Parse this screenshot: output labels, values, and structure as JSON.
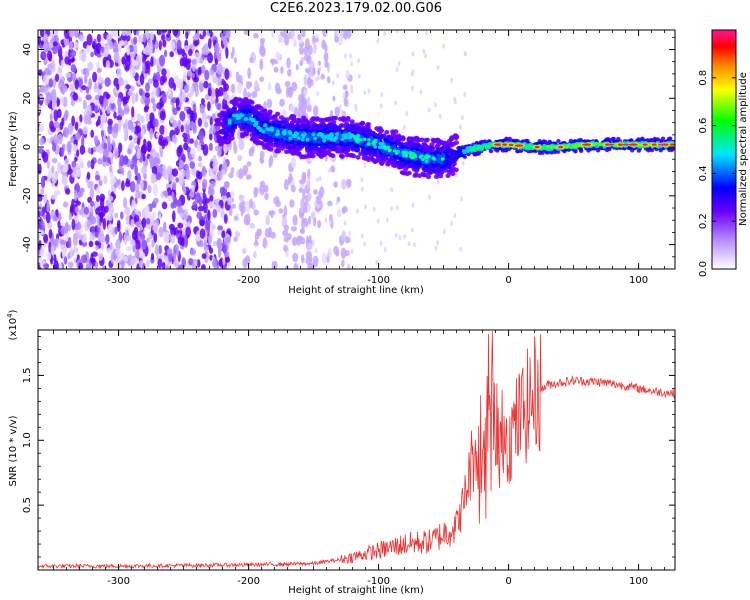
{
  "figure": {
    "title": "C2E6.2023.179.02.00.G06"
  },
  "chart_data": [
    {
      "type": "heatmap",
      "xlabel": "Height of straight line (km)",
      "ylabel": "Frequency (Hz)",
      "xlim": [
        -362,
        128
      ],
      "ylim": [
        -50,
        48
      ],
      "xticks": [
        -300,
        -200,
        -100,
        0,
        100
      ],
      "xtick_labels": [
        "-300",
        "-200",
        "-100",
        "0",
        "100"
      ],
      "yticks": [
        -40,
        -20,
        0,
        20,
        40
      ],
      "ytick_labels": [
        "-40",
        "-20",
        "0",
        "20",
        "40"
      ],
      "grid": false,
      "ridge": {
        "x": [
          -220,
          -210,
          -200,
          -190,
          -180,
          -160,
          -140,
          -120,
          -100,
          -80,
          -60,
          -50,
          -40,
          -30,
          -20,
          -10,
          0,
          20,
          40,
          60,
          80,
          100,
          128
        ],
        "y": [
          8,
          12,
          12,
          8,
          6,
          4,
          4,
          4,
          1,
          -3,
          -5,
          -5,
          -3,
          -1,
          0,
          1,
          1,
          0,
          0,
          1,
          1,
          1,
          1
        ]
      },
      "colorbar": {
        "label": "Normalized spectral amplitude",
        "range": [
          0,
          1
        ],
        "ticks": [
          0.0,
          0.2,
          0.4,
          0.6,
          0.8
        ],
        "tick_labels": [
          "0.0",
          "0.2",
          "0.4",
          "0.6",
          "0.8"
        ]
      }
    },
    {
      "type": "line",
      "xlabel": "Height of straight line (km)",
      "ylabel": "SNR (10 * v/v)",
      "scale_label": "(x10",
      "scale_exp": "4",
      "scale_close": ")",
      "xlim": [
        -362,
        128
      ],
      "ylim": [
        0,
        18500
      ],
      "xticks": [
        -300,
        -200,
        -100,
        0,
        100
      ],
      "xtick_labels": [
        "-300",
        "-200",
        "-100",
        "0",
        "100"
      ],
      "yticks": [
        5000,
        10000,
        15000
      ],
      "ytick_labels": [
        "0.5",
        "1.0",
        "1.5"
      ],
      "grid": false,
      "color": "#ee3333",
      "series": [
        {
          "x": [
            -362,
            -300,
            -250,
            -200,
            -150,
            -130,
            -120,
            -100,
            -80,
            -60,
            -50,
            -40,
            -35,
            -30,
            -25,
            -20,
            -15,
            -12,
            -10,
            -5,
            0,
            10,
            20,
            30,
            50,
            70,
            90,
            110,
            128
          ],
          "values": [
            300,
            300,
            350,
            400,
            500,
            800,
            1000,
            1500,
            2000,
            2200,
            2800,
            3500,
            5000,
            7500,
            10000,
            12000,
            11500,
            14500,
            12000,
            11500,
            10000,
            12000,
            13500,
            14300,
            14600,
            14500,
            14200,
            13800,
            13600
          ]
        }
      ]
    }
  ]
}
